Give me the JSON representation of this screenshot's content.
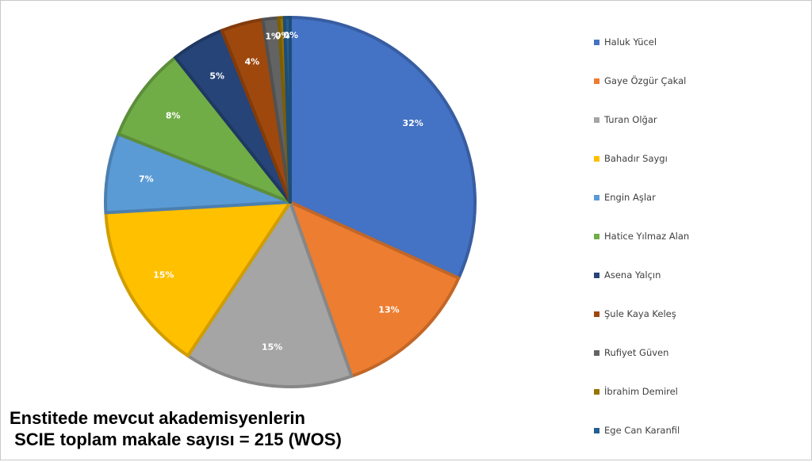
{
  "chart_data": {
    "type": "pie",
    "labels": [
      "Haluk Yücel",
      "Gaye Özgür Çakal",
      "Turan Olğar",
      "Bahadır Saygı",
      "Engin Aşlar",
      "Hatice Yılmaz Alan",
      "Asena Yalçın",
      "Şule Kaya Keleş",
      "Rufiyet Güven",
      "İbrahim Demirel",
      "Ege Can Karanfil"
    ],
    "values": [
      32.1,
      13.0,
      14.9,
      14.9,
      7.0,
      8.4,
      4.7,
      3.7,
      1.4,
      0.5,
      0.5
    ],
    "data_labels": [
      "32%",
      "13%",
      "15%",
      "15%",
      "7%",
      "8%",
      "5%",
      "4%",
      "1%",
      "0%",
      "0%"
    ],
    "colors": [
      "#4472C4",
      "#ED7D31",
      "#A5A5A5",
      "#FFC000",
      "#5B9BD5",
      "#70AD47",
      "#264478",
      "#9E480E",
      "#636363",
      "#997300",
      "#255E91"
    ],
    "legend_position": "right"
  },
  "caption": {
    "line1": "Enstitede mevcut akademisyenlerin",
    "line2": " SCIE toplam makale sayısı = 215 (WOS)"
  }
}
